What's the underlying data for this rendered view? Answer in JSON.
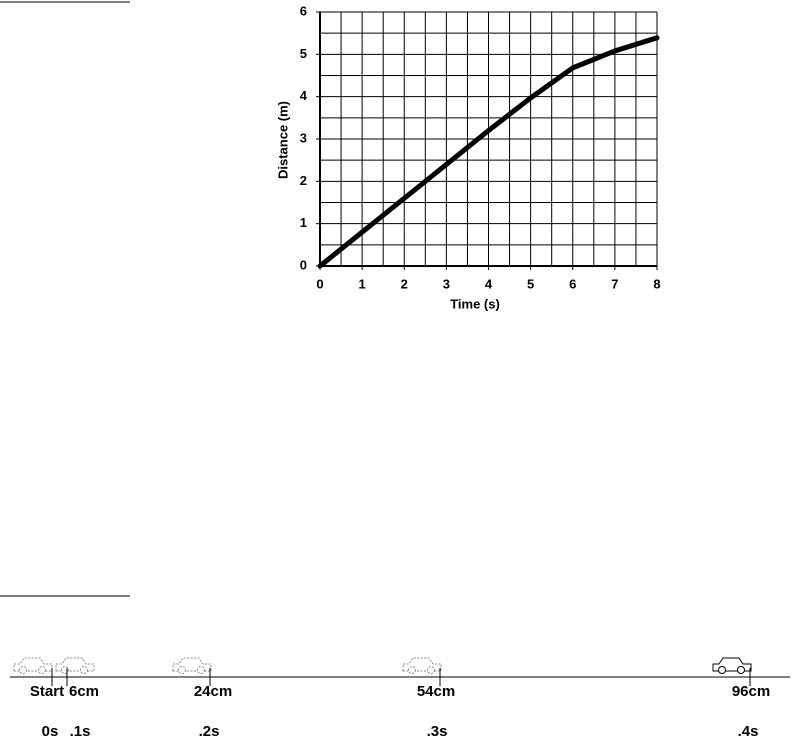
{
  "chart_data": {
    "type": "line",
    "xlabel": "Time (s)",
    "ylabel": "Distance (m)",
    "x": [
      0,
      1,
      2,
      3,
      4,
      5,
      6,
      7,
      8
    ],
    "series": [
      {
        "color": "#000000",
        "values": [
          0,
          0.8,
          1.6,
          2.4,
          3.2,
          3.97,
          4.68,
          5.08,
          5.39
        ]
      }
    ],
    "xlim": [
      0,
      8
    ],
    "ylim": [
      0,
      6
    ],
    "xticks": [
      0,
      1,
      2,
      3,
      4,
      5,
      6,
      7,
      8
    ],
    "yticks": [
      0,
      1,
      2,
      3,
      4,
      5,
      6
    ],
    "xgrid": [
      0,
      0.5,
      1,
      1.5,
      2,
      2.5,
      3,
      3.5,
      4,
      4.5,
      5,
      5.5,
      6,
      6.5,
      7,
      7.5,
      8
    ],
    "ygrid": [
      0,
      0.5,
      1,
      1.5,
      2,
      2.5,
      3,
      3.5,
      4,
      4.5,
      5,
      5.5,
      6
    ],
    "grid": true
  },
  "diagram": {
    "markers": [
      {
        "position": "Start",
        "time": "0s"
      },
      {
        "position": "6cm",
        "time": ".1s"
      },
      {
        "position": "24cm",
        "time": ".2s"
      },
      {
        "position": "54cm",
        "time": ".3s"
      },
      {
        "position": "96cm",
        "time": ".4s"
      }
    ]
  }
}
